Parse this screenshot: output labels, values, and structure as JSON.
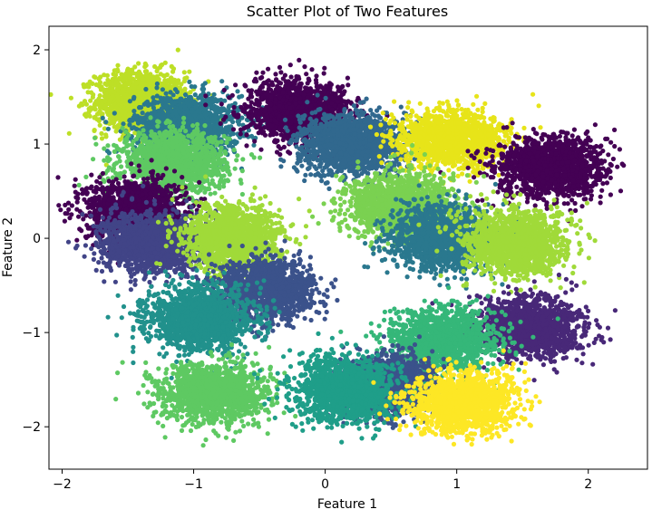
{
  "chart_data": {
    "type": "scatter",
    "title": "Scatter Plot of Two Features",
    "xlabel": "Feature 1",
    "ylabel": "Feature 2",
    "xlim": [
      -2.1,
      2.45
    ],
    "ylim": [
      -2.45,
      2.25
    ],
    "xticks": [
      {
        "value": -2,
        "label": "−2"
      },
      {
        "value": -1,
        "label": "−1"
      },
      {
        "value": 0,
        "label": "0"
      },
      {
        "value": 1,
        "label": "1"
      },
      {
        "value": 2,
        "label": "2"
      }
    ],
    "yticks": [
      {
        "value": -2,
        "label": "−2"
      },
      {
        "value": -1,
        "label": "−1"
      },
      {
        "value": 0,
        "label": "0"
      },
      {
        "value": 1,
        "label": "1"
      },
      {
        "value": 2,
        "label": "2"
      }
    ],
    "grid": false,
    "legend": "none",
    "colormap": "viridis",
    "clusters": [
      {
        "center": [
          -1.4,
          1.45
        ],
        "spread": [
          0.17,
          0.16
        ],
        "color": "#bddf26"
      },
      {
        "center": [
          -1.05,
          1.2
        ],
        "spread": [
          0.2,
          0.16
        ],
        "color": "#2a788e"
      },
      {
        "center": [
          -1.15,
          0.8
        ],
        "spread": [
          0.2,
          0.16
        ],
        "color": "#5ec962"
      },
      {
        "center": [
          -1.45,
          0.3
        ],
        "spread": [
          0.18,
          0.16
        ],
        "color": "#440154"
      },
      {
        "center": [
          -1.3,
          -0.05
        ],
        "spread": [
          0.2,
          0.16
        ],
        "color": "#414487"
      },
      {
        "center": [
          -0.7,
          0.0
        ],
        "spread": [
          0.18,
          0.17
        ],
        "color": "#a0da39"
      },
      {
        "center": [
          -0.45,
          -0.55
        ],
        "spread": [
          0.18,
          0.16
        ],
        "color": "#3b528b"
      },
      {
        "center": [
          -0.95,
          -0.85
        ],
        "spread": [
          0.2,
          0.17
        ],
        "color": "#21918c"
      },
      {
        "center": [
          -0.85,
          -1.65
        ],
        "spread": [
          0.2,
          0.16
        ],
        "color": "#5ec962"
      },
      {
        "center": [
          -0.2,
          1.35
        ],
        "spread": [
          0.2,
          0.16
        ],
        "color": "#440154"
      },
      {
        "center": [
          0.2,
          1.0
        ],
        "spread": [
          0.2,
          0.16
        ],
        "color": "#31688e"
      },
      {
        "center": [
          0.95,
          1.05
        ],
        "spread": [
          0.2,
          0.15
        ],
        "color": "#e7e419"
      },
      {
        "center": [
          1.7,
          0.75
        ],
        "spread": [
          0.2,
          0.16
        ],
        "color": "#440154"
      },
      {
        "center": [
          0.55,
          0.35
        ],
        "spread": [
          0.2,
          0.17
        ],
        "color": "#7ad151"
      },
      {
        "center": [
          0.9,
          0.0
        ],
        "spread": [
          0.2,
          0.17
        ],
        "color": "#2a788e"
      },
      {
        "center": [
          1.45,
          -0.05
        ],
        "spread": [
          0.19,
          0.17
        ],
        "color": "#a0da39"
      },
      {
        "center": [
          1.55,
          -0.95
        ],
        "spread": [
          0.2,
          0.16
        ],
        "color": "#482878"
      },
      {
        "center": [
          0.9,
          -1.1
        ],
        "spread": [
          0.2,
          0.16
        ],
        "color": "#35b779"
      },
      {
        "center": [
          0.5,
          -1.55
        ],
        "spread": [
          0.18,
          0.16
        ],
        "color": "#3b528b"
      },
      {
        "center": [
          0.15,
          -1.6
        ],
        "spread": [
          0.19,
          0.17
        ],
        "color": "#1f9e89"
      },
      {
        "center": [
          1.05,
          -1.75
        ],
        "spread": [
          0.2,
          0.16
        ],
        "color": "#fde725"
      }
    ],
    "points_per_cluster": 1400
  }
}
